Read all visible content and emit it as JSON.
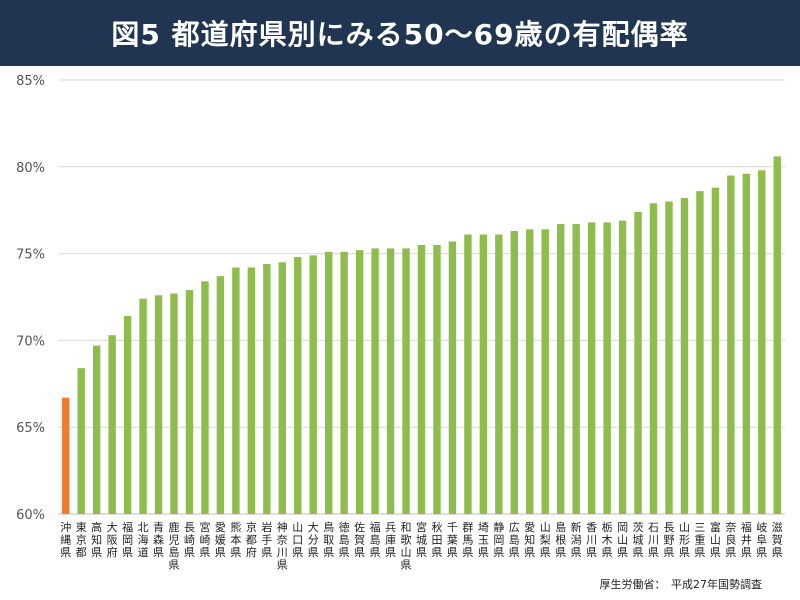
{
  "title": "図5 都道府県別にみる50〜69歳の有配偶率",
  "source": "厚生労働省：　平成27年国勢調査",
  "colors": {
    "header_bg": "#1f3552",
    "bar": "#8fbd4d",
    "highlight_bar": "#ed7d31",
    "grid": "#d9d9d9"
  },
  "chart_data": {
    "type": "bar",
    "title": "図5 都道府県別にみる50〜69歳の有配偶率",
    "xlabel": "",
    "ylabel": "",
    "ylim": [
      60,
      85
    ],
    "yticks": [
      "60%",
      "65%",
      "70%",
      "75%",
      "80%",
      "85%"
    ],
    "grid": true,
    "legend": "none",
    "highlight_index": 0,
    "categories": [
      "沖縄県",
      "東京都",
      "高知県",
      "大阪府",
      "福岡県",
      "北海道",
      "青森県",
      "鹿児島県",
      "長崎県",
      "宮崎県",
      "愛媛県",
      "熊本県",
      "京都府",
      "岩手県",
      "神奈川県",
      "山口県",
      "大分県",
      "鳥取県",
      "徳島県",
      "佐賀県",
      "福島県",
      "兵庫県",
      "和歌山県",
      "宮城県",
      "秋田県",
      "千葉県",
      "群馬県",
      "埼玉県",
      "静岡県",
      "広島県",
      "愛知県",
      "山梨県",
      "島根県",
      "新潟県",
      "香川県",
      "栃木県",
      "岡山県",
      "茨城県",
      "石川県",
      "長野県",
      "山形県",
      "三重県",
      "富山県",
      "奈良県",
      "福井県",
      "岐阜県",
      "滋賀県"
    ],
    "values": [
      66.7,
      68.4,
      69.7,
      70.3,
      71.4,
      72.4,
      72.6,
      72.7,
      72.9,
      73.4,
      73.7,
      74.2,
      74.2,
      74.4,
      74.5,
      74.8,
      74.9,
      75.1,
      75.1,
      75.2,
      75.3,
      75.3,
      75.3,
      75.5,
      75.5,
      75.7,
      76.1,
      76.1,
      76.1,
      76.3,
      76.4,
      76.4,
      76.7,
      76.7,
      76.8,
      76.8,
      76.9,
      77.4,
      77.9,
      78.0,
      78.2,
      78.6,
      78.8,
      79.5,
      79.6,
      79.8,
      80.6
    ]
  }
}
